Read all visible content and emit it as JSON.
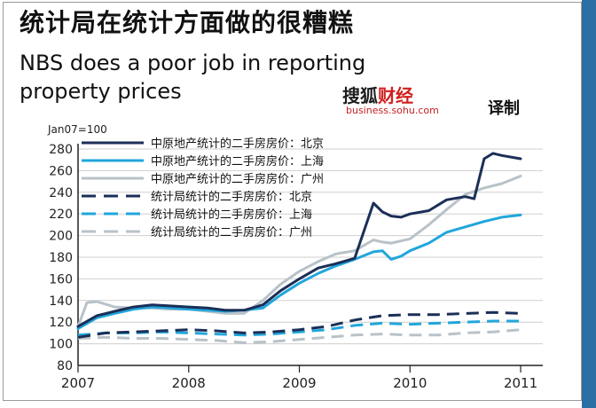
{
  "title_cn": "统计局在统计方面做的很糟糕",
  "title_en_line1": "NBS does a poor job in reporting",
  "title_en_line2": "property prices",
  "brand": {
    "part1": "搜狐",
    "part2": "财经",
    "url": "business.sohu.com",
    "note": "译制"
  },
  "colors": {
    "dark": "#1b2f57",
    "mid": "#21a6db",
    "light": "#b8c2c8",
    "axis": "#222222",
    "grid": "#cfcfcf",
    "accent": "#2b6ea3"
  },
  "chart_data": {
    "type": "line",
    "ylabel": "Jan07=100",
    "ylim": [
      80,
      280
    ],
    "yticks": [
      80,
      100,
      120,
      140,
      160,
      180,
      200,
      220,
      240,
      260,
      280
    ],
    "xlim": [
      2007,
      2011.2
    ],
    "xticks": [
      "2007",
      "2008",
      "2009",
      "2010",
      "2011"
    ],
    "grid": true,
    "legend_position": "top-left",
    "series": [
      {
        "name": "中原地产统计的二手房房价：北京",
        "color": "dark",
        "dash": false,
        "x": [
          2007.0,
          2007.17,
          2007.33,
          2007.5,
          2007.67,
          2007.83,
          2008.0,
          2008.17,
          2008.33,
          2008.5,
          2008.67,
          2008.83,
          2009.0,
          2009.17,
          2009.33,
          2009.5,
          2009.67,
          2009.75,
          2009.83,
          2009.92,
          2010.0,
          2010.17,
          2010.33,
          2010.5,
          2010.58,
          2010.67,
          2010.75,
          2010.83,
          2011.0
        ],
        "y": [
          116,
          126,
          130,
          134,
          136,
          135,
          134,
          133,
          131,
          131,
          136,
          149,
          160,
          170,
          174,
          179,
          230,
          222,
          218,
          217,
          220,
          223,
          233,
          236,
          234,
          271,
          276,
          274,
          271
        ]
      },
      {
        "name": "中原地产统计的二手房房价：上海",
        "color": "mid",
        "dash": false,
        "x": [
          2007.0,
          2007.17,
          2007.33,
          2007.5,
          2007.67,
          2007.83,
          2008.0,
          2008.17,
          2008.33,
          2008.5,
          2008.67,
          2008.83,
          2009.0,
          2009.17,
          2009.33,
          2009.5,
          2009.67,
          2009.75,
          2009.83,
          2009.92,
          2010.0,
          2010.17,
          2010.33,
          2010.5,
          2010.67,
          2010.83,
          2011.0
        ],
        "y": [
          114,
          124,
          128,
          132,
          134,
          133,
          132,
          131,
          130,
          131,
          133,
          145,
          156,
          165,
          172,
          178,
          185,
          186,
          178,
          181,
          186,
          193,
          203,
          208,
          213,
          217,
          219
        ]
      },
      {
        "name": "中原地产统计的二手房房价：广州",
        "color": "light",
        "dash": false,
        "x": [
          2007.0,
          2007.08,
          2007.17,
          2007.33,
          2007.5,
          2007.67,
          2007.83,
          2008.0,
          2008.17,
          2008.33,
          2008.5,
          2008.67,
          2008.83,
          2009.0,
          2009.17,
          2009.33,
          2009.5,
          2009.67,
          2009.75,
          2009.83,
          2010.0,
          2010.17,
          2010.33,
          2010.5,
          2010.67,
          2010.83,
          2011.0
        ],
        "y": [
          116,
          138,
          139,
          134,
          133,
          133,
          132,
          132,
          130,
          128,
          128,
          140,
          155,
          167,
          176,
          183,
          186,
          196,
          194,
          193,
          197,
          210,
          224,
          238,
          244,
          248,
          255
        ]
      },
      {
        "name": "统计局统计的二手房房价：北京",
        "color": "dark",
        "dash": true,
        "x": [
          2007.0,
          2007.25,
          2007.5,
          2007.75,
          2008.0,
          2008.25,
          2008.5,
          2008.75,
          2009.0,
          2009.25,
          2009.5,
          2009.75,
          2010.0,
          2010.25,
          2010.5,
          2010.75,
          2011.0
        ],
        "y": [
          106,
          110,
          111,
          112,
          113,
          112,
          110,
          111,
          113,
          116,
          122,
          126,
          127,
          127,
          128,
          129,
          128
        ]
      },
      {
        "name": "统计局统计的二手房房价：上海",
        "color": "mid",
        "dash": true,
        "x": [
          2007.0,
          2007.25,
          2007.5,
          2007.75,
          2008.0,
          2008.25,
          2008.5,
          2008.75,
          2009.0,
          2009.25,
          2009.5,
          2009.75,
          2010.0,
          2010.25,
          2010.5,
          2010.75,
          2011.0
        ],
        "y": [
          108,
          110,
          110,
          111,
          110,
          109,
          108,
          109,
          111,
          113,
          117,
          119,
          118,
          119,
          120,
          121,
          121
        ]
      },
      {
        "name": "统计局统计的二手房房价：广州",
        "color": "light",
        "dash": true,
        "x": [
          2007.0,
          2007.25,
          2007.5,
          2007.75,
          2008.0,
          2008.25,
          2008.5,
          2008.75,
          2009.0,
          2009.25,
          2009.5,
          2009.75,
          2010.0,
          2010.25,
          2010.5,
          2010.75,
          2011.0
        ],
        "y": [
          105,
          106,
          105,
          105,
          104,
          103,
          101,
          102,
          104,
          106,
          108,
          109,
          108,
          108,
          110,
          111,
          113
        ]
      }
    ]
  }
}
